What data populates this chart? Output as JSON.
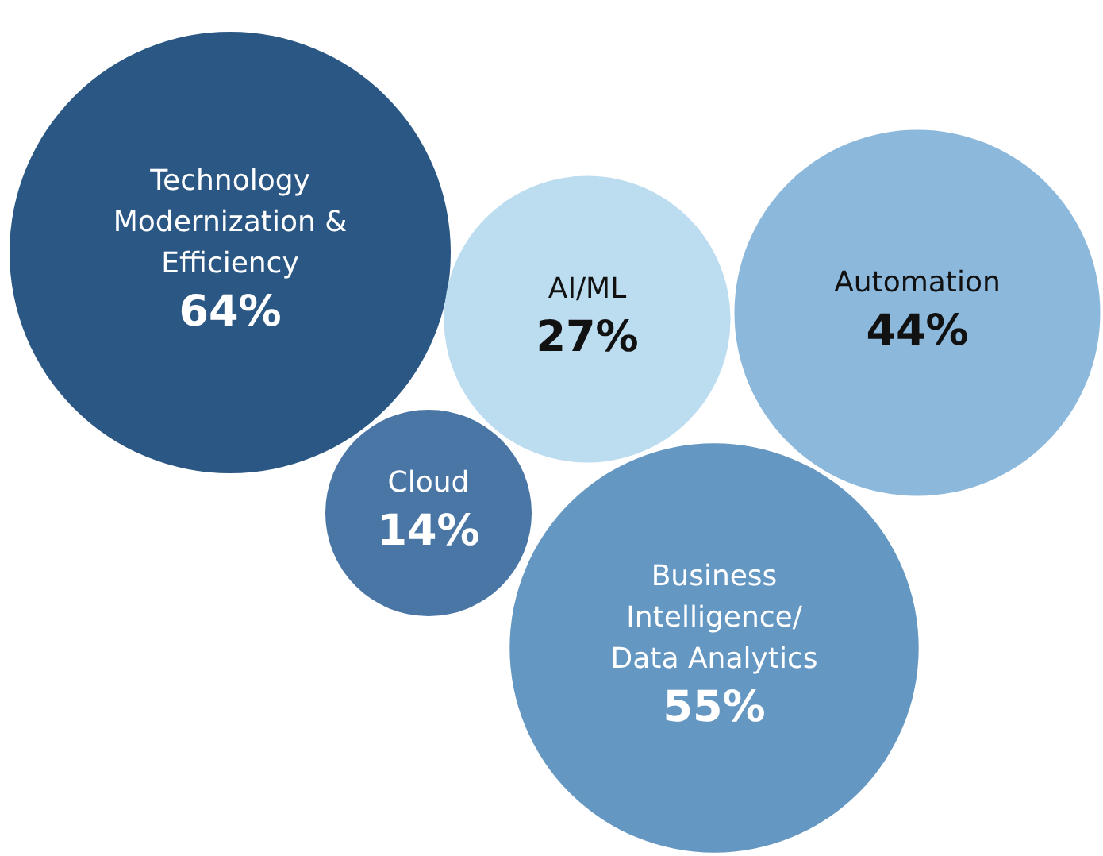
{
  "chart_data": {
    "type": "other",
    "categories": [
      "Technology Modernization & Efficiency",
      "AI/ML",
      "Automation",
      "Cloud",
      "Business Intelligence/Data Analytics"
    ],
    "values": [
      64,
      27,
      44,
      14,
      55
    ],
    "value_labels": [
      "64%",
      "27%",
      "44%",
      "14%",
      "55%"
    ],
    "colors": [
      "#2a5783",
      "#bcdcf0",
      "#8cb8dc",
      "#4a76a6",
      "#6497c2"
    ]
  }
}
